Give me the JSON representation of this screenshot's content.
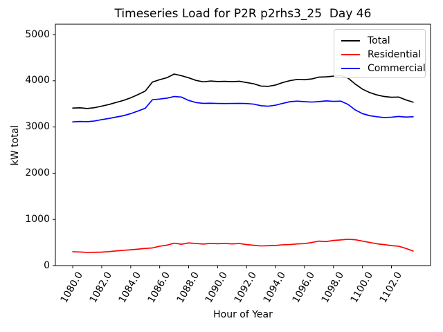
{
  "accent_colors": {
    "total": "#000000",
    "residential": "#ff0000",
    "commercial": "#0000ff",
    "spine": "#000000",
    "legend_border": "#cccccc"
  },
  "chart_data": {
    "type": "line",
    "title": "Timeseries Load for P2R p2rhs3_25  Day 46",
    "xlabel": "Hour of Year",
    "ylabel": "kW total",
    "grid": false,
    "legend_position": "upper right",
    "xlim": [
      1078.8,
      1104.7
    ],
    "ylim": [
      0,
      5225
    ],
    "x_ticks": [
      1080,
      1082,
      1084,
      1086,
      1088,
      1090,
      1092,
      1094,
      1096,
      1098,
      1100,
      1102
    ],
    "x_tick_labels": [
      "1080.0",
      "1082.0",
      "1084.0",
      "1086.0",
      "1088.0",
      "1090.0",
      "1092.0",
      "1094.0",
      "1096.0",
      "1098.0",
      "1100.0",
      "1102.0"
    ],
    "x_tick_rotation_deg": 60,
    "y_ticks": [
      0,
      1000,
      2000,
      3000,
      4000,
      5000
    ],
    "y_tick_labels": [
      "0",
      "1000",
      "2000",
      "3000",
      "4000",
      "5000"
    ],
    "x": [
      1080.0,
      1080.5,
      1081.0,
      1081.5,
      1082.0,
      1082.5,
      1083.0,
      1083.5,
      1084.0,
      1084.5,
      1085.0,
      1085.5,
      1086.0,
      1086.5,
      1087.0,
      1087.5,
      1088.0,
      1088.5,
      1089.0,
      1089.5,
      1090.0,
      1090.5,
      1091.0,
      1091.5,
      1092.0,
      1092.5,
      1093.0,
      1093.5,
      1094.0,
      1094.5,
      1095.0,
      1095.5,
      1096.0,
      1096.5,
      1097.0,
      1097.5,
      1098.0,
      1098.5,
      1099.0,
      1099.5,
      1100.0,
      1100.5,
      1101.0,
      1101.5,
      1102.0,
      1102.5,
      1103.0,
      1103.5
    ],
    "series": [
      {
        "name": "Total",
        "color": "#000000",
        "values": [
          3410,
          3415,
          3400,
          3418,
          3452,
          3487,
          3533,
          3575,
          3632,
          3701,
          3777,
          3972,
          4025,
          4067,
          4146,
          4110,
          4065,
          4010,
          3978,
          3995,
          3984,
          3988,
          3980,
          3990,
          3963,
          3935,
          3886,
          3880,
          3908,
          3962,
          4004,
          4030,
          4024,
          4040,
          4080,
          4085,
          4100,
          4116,
          4060,
          3930,
          3820,
          3745,
          3694,
          3660,
          3644,
          3648,
          3587,
          3537
        ]
      },
      {
        "name": "Residential",
        "color": "#ff0000",
        "values": [
          300,
          295,
          285,
          288,
          292,
          302,
          318,
          330,
          342,
          356,
          372,
          382,
          420,
          442,
          486,
          462,
          490,
          480,
          466,
          480,
          474,
          480,
          470,
          478,
          455,
          440,
          426,
          430,
          436,
          450,
          456,
          470,
          476,
          500,
          530,
          520,
          545,
          556,
          570,
          560,
          530,
          500,
          472,
          455,
          432,
          420,
          372,
          315
        ]
      },
      {
        "name": "Commercial",
        "color": "#0000ff",
        "values": [
          3110,
          3120,
          3115,
          3130,
          3160,
          3185,
          3215,
          3245,
          3290,
          3345,
          3405,
          3590,
          3605,
          3625,
          3660,
          3648,
          3575,
          3530,
          3512,
          3515,
          3510,
          3508,
          3510,
          3512,
          3508,
          3495,
          3460,
          3450,
          3472,
          3512,
          3548,
          3560,
          3548,
          3540,
          3550,
          3565,
          3555,
          3560,
          3490,
          3370,
          3290,
          3245,
          3222,
          3205,
          3212,
          3228,
          3215,
          3222
        ]
      }
    ]
  }
}
